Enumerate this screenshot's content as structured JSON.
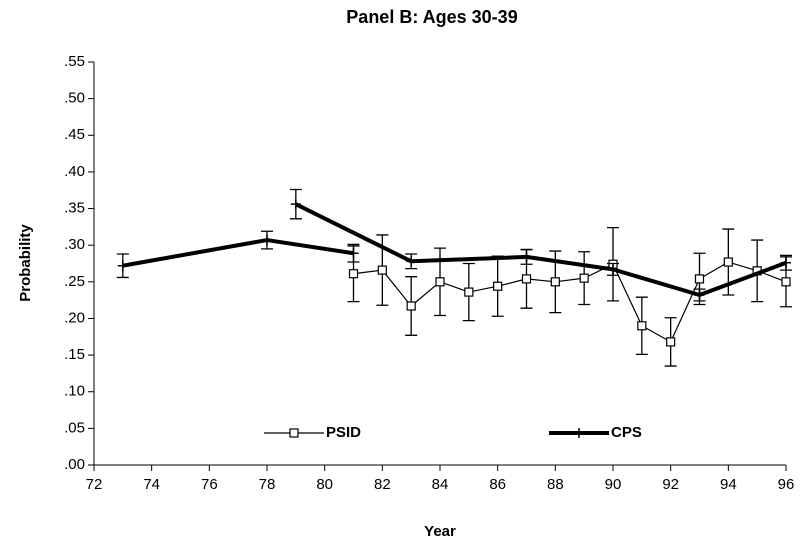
{
  "chart_data": {
    "type": "line",
    "title": "Panel B:  Ages 30-39",
    "x_label": "Year",
    "y_label": "Probability",
    "xlim": [
      72,
      96
    ],
    "xticks": [
      72,
      74,
      76,
      78,
      80,
      82,
      84,
      86,
      88,
      90,
      92,
      94,
      96
    ],
    "ylim": [
      0,
      0.55
    ],
    "yticks": [
      {
        "value": 0,
        "label": ".00"
      },
      {
        "value": 0.05,
        "label": ".05"
      },
      {
        "value": 0.1,
        "label": ".10"
      },
      {
        "value": 0.15,
        "label": ".15"
      },
      {
        "value": 0.2,
        "label": ".20"
      },
      {
        "value": 0.25,
        "label": ".25"
      },
      {
        "value": 0.3,
        "label": ".30"
      },
      {
        "value": 0.35,
        "label": ".35"
      },
      {
        "value": 0.4,
        "label": ".40"
      },
      {
        "value": 0.45,
        "label": ".45"
      },
      {
        "value": 0.5,
        "label": ".50"
      },
      {
        "value": 0.55,
        "label": ".55"
      }
    ],
    "grid": false,
    "legend": "bottom",
    "series": [
      {
        "name": "PSID",
        "color": "#000000",
        "marker": "square",
        "line_width": 1.2,
        "x": [
          81,
          82,
          83,
          84,
          85,
          86,
          87,
          88,
          89,
          90,
          91,
          92,
          93,
          94,
          95,
          96
        ],
        "values": [
          0.261,
          0.266,
          0.217,
          0.25,
          0.236,
          0.244,
          0.254,
          0.25,
          0.255,
          0.274,
          0.19,
          0.168,
          0.254,
          0.277,
          0.265,
          0.25
        ],
        "errors": [
          0.038,
          0.048,
          0.04,
          0.046,
          0.039,
          0.041,
          0.04,
          0.042,
          0.036,
          0.05,
          0.039,
          0.033,
          0.035,
          0.045,
          0.042,
          0.034
        ]
      },
      {
        "name": "CPS",
        "color": "#000000",
        "marker": "plus",
        "line_width": 4,
        "x": [
          73,
          78,
          81,
          null,
          79,
          83,
          87,
          90,
          93,
          96
        ],
        "values": [
          0.272,
          0.307,
          0.289,
          null,
          0.356,
          0.278,
          0.284,
          0.267,
          0.232,
          0.276
        ],
        "errors": [
          0.016,
          0.012,
          0.012,
          null,
          0.02,
          0.01,
          0.01,
          0.008,
          0.008,
          0.01
        ]
      }
    ]
  }
}
